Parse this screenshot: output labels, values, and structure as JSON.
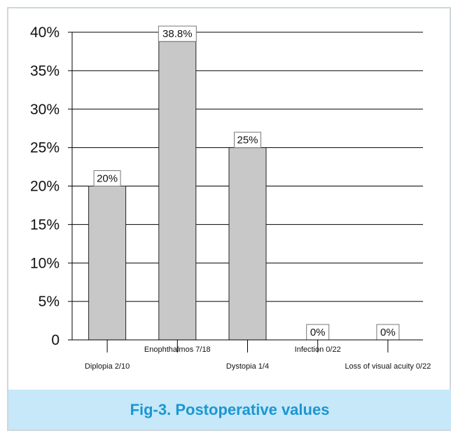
{
  "figure": {
    "caption": "Fig-3. Postoperative values"
  },
  "colors": {
    "bar_fill": "#c8c8c8",
    "bar_stroke": "#222222",
    "axis": "#000000",
    "caption_band": "#c6e8f8",
    "caption_text": "#1c96d2",
    "frame": "#cfd7dd"
  },
  "chart_data": {
    "type": "bar",
    "categories": [
      "Diplopia 2/10",
      "Enophthalmos 7/18",
      "Dystopia 1/4",
      "Infection 0/22",
      "Loss of visual acuity 0/22"
    ],
    "values": [
      20,
      38.8,
      25,
      0,
      0
    ],
    "data_labels": [
      "20%",
      "38.8%",
      "25%",
      "0%",
      "0%"
    ],
    "yticks": [
      0,
      5,
      10,
      15,
      20,
      25,
      30,
      35,
      40
    ],
    "ytick_labels": [
      "0",
      "5%",
      "10%",
      "15%",
      "20%",
      "25%",
      "30%",
      "35%",
      "40%"
    ],
    "ylim": [
      0,
      40
    ],
    "grid": true,
    "title": "",
    "xlabel": "",
    "ylabel": ""
  }
}
